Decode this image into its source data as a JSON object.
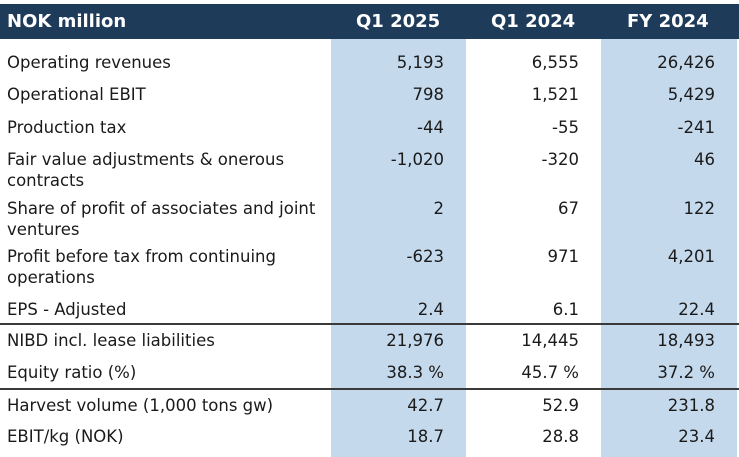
{
  "header": {
    "label": "NOK million",
    "col1": "Q1 2025",
    "col2": "Q1 2024",
    "col3": "FY 2024"
  },
  "rows": [
    {
      "label": "Operating revenues",
      "q1_2025": "5,193",
      "q1_2024": "6,555",
      "fy_2024": "26,426"
    },
    {
      "label": "Operational EBIT",
      "q1_2025": "798",
      "q1_2024": "1,521",
      "fy_2024": "5,429"
    },
    {
      "label": "Production tax",
      "q1_2025": "-44",
      "q1_2024": "-55",
      "fy_2024": "-241"
    },
    {
      "label": "Fair value adjustments & onerous contracts",
      "q1_2025": "-1,020",
      "q1_2024": "-320",
      "fy_2024": "46"
    },
    {
      "label": "Share of profit of associates and joint ventures",
      "q1_2025": "2",
      "q1_2024": "67",
      "fy_2024": "122"
    },
    {
      "label": "Profit before tax from continuing operations",
      "q1_2025": "-623",
      "q1_2024": "971",
      "fy_2024": "4,201"
    },
    {
      "label": "EPS - Adjusted",
      "q1_2025": "2.4",
      "q1_2024": "6.1",
      "fy_2024": "22.4"
    },
    {
      "label": "NIBD incl. lease liabilities",
      "q1_2025": "21,976",
      "q1_2024": "14,445",
      "fy_2024": "18,493"
    },
    {
      "label": "Equity ratio (%)",
      "q1_2025": "38.3 %",
      "q1_2024": "45.7 %",
      "fy_2024": "37.2 %"
    },
    {
      "label": "Harvest volume (1,000 tons gw)",
      "q1_2025": "42.7",
      "q1_2024": "52.9",
      "fy_2024": "231.8"
    },
    {
      "label": "EBIT/kg (NOK)",
      "q1_2025": "18.7",
      "q1_2024": "28.8",
      "fy_2024": "23.4"
    }
  ],
  "colors": {
    "header_bg": "#1f3b5a",
    "shade": "#c5d9ec",
    "header_text": "#ffffff"
  }
}
